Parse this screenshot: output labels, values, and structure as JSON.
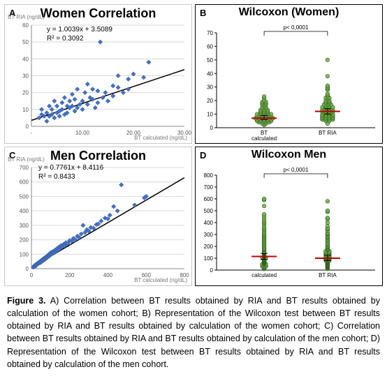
{
  "panelA": {
    "type": "scatter",
    "letter": "A",
    "title": "Women Correlation",
    "yAxisLabel": "BT RIA\n(ng/dL)",
    "xAxisLabel": "BT calculated\n(ng/dL)",
    "eqLine1": "y = 1.0039x + 3.5089",
    "eqLine2": "R² = 0.3092",
    "xlim": [
      0,
      30
    ],
    "ylim": [
      0,
      60
    ],
    "xticks": [
      "-",
      "10.00",
      "20.00",
      "30.00"
    ],
    "yticks": [
      0,
      10,
      20,
      30,
      40,
      50,
      60
    ],
    "pointColor": "#4472c4",
    "pointStroke": "#2f528f",
    "gridColor": "#d9d9d9",
    "axisColor": "#888",
    "trendColor": "#000",
    "trend": {
      "slope": 1.0039,
      "intercept": 3.5089
    },
    "points": [
      [
        1.5,
        5
      ],
      [
        2,
        10
      ],
      [
        2,
        7
      ],
      [
        2.5,
        6
      ],
      [
        3,
        3
      ],
      [
        3,
        8
      ],
      [
        3.5,
        12
      ],
      [
        3.5,
        6
      ],
      [
        4,
        7
      ],
      [
        4,
        10
      ],
      [
        4.5,
        5
      ],
      [
        4.5,
        15
      ],
      [
        5,
        8
      ],
      [
        5,
        12
      ],
      [
        5.5,
        9
      ],
      [
        5.5,
        6
      ],
      [
        6,
        14
      ],
      [
        6,
        10
      ],
      [
        6.5,
        7
      ],
      [
        6.5,
        17
      ],
      [
        7,
        12
      ],
      [
        7,
        8
      ],
      [
        7.5,
        15
      ],
      [
        7.5,
        11
      ],
      [
        8,
        12
      ],
      [
        8,
        19
      ],
      [
        8.5,
        9
      ],
      [
        8.5,
        16
      ],
      [
        9,
        11
      ],
      [
        9,
        22
      ],
      [
        9.5,
        13
      ],
      [
        10,
        15
      ],
      [
        10,
        10
      ],
      [
        10.5,
        20
      ],
      [
        11,
        13
      ],
      [
        11,
        25
      ],
      [
        11.5,
        17
      ],
      [
        12,
        16
      ],
      [
        12,
        22
      ],
      [
        12.5,
        11
      ],
      [
        13,
        21
      ],
      [
        13,
        14
      ],
      [
        13.5,
        50
      ],
      [
        14,
        17
      ],
      [
        14.5,
        20
      ],
      [
        15,
        15
      ],
      [
        16,
        24
      ],
      [
        16,
        18
      ],
      [
        17,
        23
      ],
      [
        17,
        30
      ],
      [
        18,
        20
      ],
      [
        19,
        28
      ],
      [
        19,
        22
      ],
      [
        20,
        31
      ],
      [
        22,
        29
      ],
      [
        23,
        38
      ]
    ]
  },
  "panelB": {
    "type": "wilcoxon",
    "letter": "B",
    "title": "Wilcoxon (Women)",
    "pText": "p< 0,0001",
    "ylim": [
      0,
      70
    ],
    "yticks": [
      0,
      10,
      20,
      30,
      40,
      50,
      60,
      70
    ],
    "groupLabels": [
      "BT\ncalculated",
      "BT RIA"
    ],
    "pointColor": "#70ad47",
    "pointStroke": "#2e5d1f",
    "medianColor": "#c00000",
    "boxColor": "#000",
    "groups": [
      {
        "x": 0.3,
        "median": 7,
        "errLow": 6,
        "errHigh": 9,
        "vals": [
          2,
          3,
          3,
          4,
          4,
          4,
          4,
          5,
          5,
          5,
          5,
          5,
          6,
          6,
          6,
          6,
          6,
          7,
          7,
          7,
          7,
          7,
          7,
          8,
          8,
          8,
          8,
          8,
          9,
          9,
          9,
          9,
          10,
          10,
          10,
          10,
          10,
          11,
          11,
          11,
          12,
          12,
          12,
          13,
          13,
          13,
          14,
          14,
          15,
          15,
          16,
          17,
          17,
          18,
          18,
          19,
          19,
          20,
          22,
          23
        ]
      },
      {
        "x": 0.7,
        "median": 12,
        "errLow": 10,
        "errHigh": 14,
        "vals": [
          3,
          5,
          5,
          6,
          6,
          6,
          6,
          7,
          7,
          7,
          7,
          8,
          8,
          8,
          8,
          9,
          9,
          9,
          9,
          10,
          10,
          10,
          10,
          11,
          11,
          11,
          12,
          12,
          12,
          12,
          13,
          13,
          13,
          13,
          14,
          14,
          14,
          15,
          15,
          15,
          15,
          16,
          16,
          17,
          17,
          17,
          18,
          18,
          19,
          19,
          20,
          20,
          21,
          22,
          22,
          23,
          24,
          25,
          28,
          29,
          30,
          31,
          38,
          50
        ]
      }
    ]
  },
  "panelC": {
    "type": "scatter",
    "letter": "C",
    "title": "Men Correlation",
    "yAxisLabel": "BT RIA\n(ng/dL)",
    "xAxisLabel": "BT calculated\n(ng/dL)",
    "eqLine1": "y = 0.7761x + 8.4116",
    "eqLine2": "R² = 0.8433",
    "xlim": [
      0,
      800
    ],
    "ylim": [
      0,
      700
    ],
    "xticks": [
      0,
      200,
      400,
      600,
      800
    ],
    "yticks": [
      0,
      100,
      200,
      300,
      400,
      500,
      600,
      700
    ],
    "pointColor": "#4472c4",
    "pointStroke": "#2f528f",
    "gridColor": "#d9d9d9",
    "axisColor": "#888",
    "trendColor": "#000",
    "trend": {
      "slope": 0.7761,
      "intercept": 8.4116
    },
    "points": [
      [
        10,
        10
      ],
      [
        15,
        20
      ],
      [
        20,
        25
      ],
      [
        22,
        18
      ],
      [
        25,
        30
      ],
      [
        30,
        35
      ],
      [
        30,
        28
      ],
      [
        35,
        40
      ],
      [
        40,
        38
      ],
      [
        40,
        45
      ],
      [
        45,
        50
      ],
      [
        48,
        42
      ],
      [
        50,
        55
      ],
      [
        50,
        48
      ],
      [
        55,
        60
      ],
      [
        58,
        52
      ],
      [
        60,
        65
      ],
      [
        62,
        58
      ],
      [
        65,
        70
      ],
      [
        68,
        62
      ],
      [
        70,
        75
      ],
      [
        72,
        68
      ],
      [
        75,
        80
      ],
      [
        78,
        72
      ],
      [
        80,
        78
      ],
      [
        82,
        85
      ],
      [
        85,
        80
      ],
      [
        88,
        95
      ],
      [
        90,
        85
      ],
      [
        92,
        100
      ],
      [
        95,
        90
      ],
      [
        98,
        105
      ],
      [
        100,
        95
      ],
      [
        100,
        110
      ],
      [
        105,
        100
      ],
      [
        108,
        115
      ],
      [
        110,
        105
      ],
      [
        115,
        120
      ],
      [
        118,
        112
      ],
      [
        120,
        110
      ],
      [
        125,
        130
      ],
      [
        128,
        120
      ],
      [
        130,
        125
      ],
      [
        135,
        140
      ],
      [
        140,
        130
      ],
      [
        145,
        150
      ],
      [
        150,
        140
      ],
      [
        155,
        160
      ],
      [
        160,
        150
      ],
      [
        170,
        170
      ],
      [
        175,
        160
      ],
      [
        180,
        180
      ],
      [
        190,
        175
      ],
      [
        200,
        195
      ],
      [
        210,
        190
      ],
      [
        220,
        210
      ],
      [
        230,
        200
      ],
      [
        240,
        225
      ],
      [
        250,
        215
      ],
      [
        260,
        240
      ],
      [
        270,
        300
      ],
      [
        280,
        250
      ],
      [
        290,
        270
      ],
      [
        300,
        260
      ],
      [
        310,
        285
      ],
      [
        325,
        280
      ],
      [
        340,
        305
      ],
      [
        350,
        310
      ],
      [
        365,
        330
      ],
      [
        385,
        350
      ],
      [
        400,
        345
      ],
      [
        410,
        370
      ],
      [
        430,
        430
      ],
      [
        450,
        400
      ],
      [
        470,
        580
      ],
      [
        540,
        440
      ],
      [
        590,
        490
      ],
      [
        600,
        500
      ]
    ]
  },
  "panelD": {
    "type": "wilcoxon",
    "letter": "D",
    "title": "Wilcoxon Men",
    "pText": "p< 0,0001",
    "ylim": [
      0,
      800
    ],
    "yticks": [
      0,
      100,
      200,
      300,
      400,
      500,
      600,
      700,
      800
    ],
    "groupLabels": [
      "calculated",
      "BT RIA"
    ],
    "pointColor": "#70ad47",
    "pointStroke": "#2e5d1f",
    "medianColor": "#c00000",
    "boxColor": "#000",
    "groups": [
      {
        "x": 0.3,
        "median": 115,
        "errLow": 90,
        "errHigh": 140,
        "vals": [
          10,
          15,
          20,
          22,
          25,
          30,
          30,
          35,
          40,
          40,
          45,
          48,
          50,
          50,
          55,
          58,
          60,
          62,
          65,
          68,
          70,
          72,
          75,
          78,
          80,
          82,
          85,
          88,
          90,
          92,
          95,
          98,
          100,
          100,
          105,
          108,
          110,
          115,
          118,
          120,
          125,
          128,
          130,
          135,
          140,
          145,
          150,
          155,
          160,
          170,
          175,
          180,
          190,
          200,
          210,
          220,
          230,
          240,
          250,
          260,
          270,
          280,
          290,
          300,
          310,
          325,
          340,
          350,
          365,
          385,
          400,
          410,
          430,
          450,
          470,
          540,
          590,
          600
        ]
      },
      {
        "x": 0.7,
        "median": 100,
        "errLow": 80,
        "errHigh": 125,
        "vals": [
          10,
          18,
          20,
          25,
          28,
          30,
          35,
          38,
          40,
          42,
          45,
          48,
          50,
          52,
          55,
          58,
          60,
          62,
          65,
          68,
          70,
          72,
          75,
          78,
          80,
          80,
          85,
          85,
          90,
          95,
          95,
          100,
          100,
          105,
          105,
          110,
          110,
          112,
          115,
          120,
          120,
          125,
          130,
          130,
          140,
          140,
          150,
          150,
          160,
          160,
          170,
          175,
          180,
          190,
          195,
          200,
          210,
          215,
          225,
          240,
          250,
          260,
          270,
          280,
          285,
          300,
          305,
          310,
          330,
          345,
          350,
          370,
          400,
          430,
          440,
          490,
          500,
          580
        ]
      }
    ]
  },
  "caption": {
    "lead": "Figure 3.",
    "text": " A) Correlation between BT results obtained by RIA and BT results obtained by calculation of the women cohort; B) Representation of the Wilcoxon test between BT results obtained by RIA and BT results obtained by calculation of the women cohort; C) Correlation between BT results obtained by RIA and BT results obtained by calculation of the men cohort; D) Representation of the Wilcoxon test between BT results obtained by RIA and BT results obtained by calculation of the men cohort."
  }
}
